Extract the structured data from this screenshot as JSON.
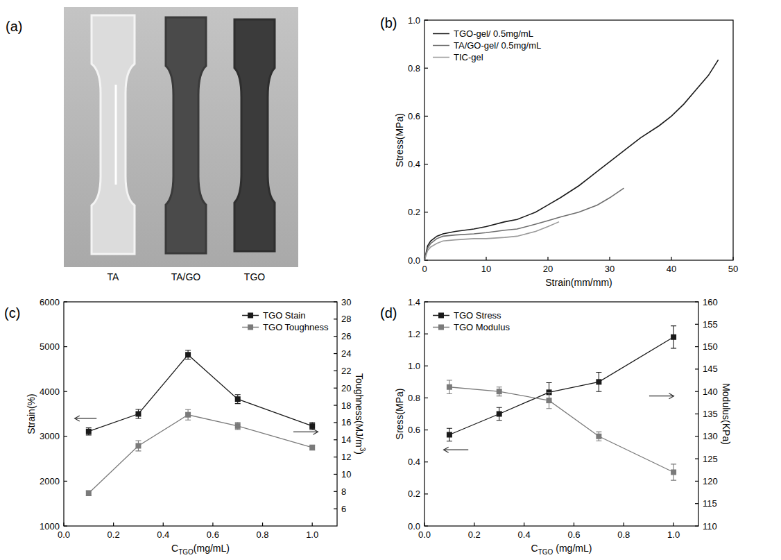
{
  "photo": {
    "panel": "(a)",
    "labels": [
      "TA",
      "TA/GO",
      "TGO"
    ]
  },
  "chart_data": [
    {
      "panel": "(b)",
      "type": "line",
      "marker": "none",
      "line_style": "solid",
      "grid": false,
      "legend": "upper left",
      "xlabel": "Strain(mm/mm)",
      "ylabel": "Stress(MPa)",
      "xlim": [
        0,
        50
      ],
      "xticks": [
        0,
        10,
        20,
        30,
        40,
        50
      ],
      "ylim": [
        0,
        1
      ],
      "yticks": [
        {
          "value": 0,
          "label": "0.0"
        },
        0.2,
        0.4,
        0.6,
        0.8,
        {
          "value": 1,
          "label": "1.0"
        }
      ],
      "series": [
        {
          "name": "TGO-gel/ 0.5mg/mL",
          "color": "#1a1a1a",
          "x": [
            0,
            0.5,
            1,
            2,
            3,
            5,
            8,
            10,
            13,
            15,
            18,
            20,
            22,
            25,
            28,
            30,
            33,
            35,
            38,
            40,
            42,
            44,
            46,
            47.6
          ],
          "values": [
            0,
            0.06,
            0.08,
            0.1,
            0.11,
            0.12,
            0.13,
            0.14,
            0.16,
            0.17,
            0.2,
            0.23,
            0.26,
            0.31,
            0.37,
            0.41,
            0.47,
            0.51,
            0.56,
            0.6,
            0.65,
            0.71,
            0.77,
            0.835
          ]
        },
        {
          "name": "TA/GO-gel/ 0.5mg/mL",
          "color": "#6e6e6e",
          "x": [
            0,
            0.5,
            1,
            2,
            3,
            5,
            8,
            10,
            13,
            15,
            18,
            20,
            22,
            25,
            28,
            30,
            32.3
          ],
          "values": [
            0,
            0.05,
            0.07,
            0.09,
            0.1,
            0.105,
            0.11,
            0.115,
            0.125,
            0.13,
            0.15,
            0.165,
            0.18,
            0.2,
            0.23,
            0.26,
            0.3
          ]
        },
        {
          "name": "TIC-gel",
          "color": "#9a9a9a",
          "x": [
            0,
            0.5,
            1,
            2,
            3,
            5,
            8,
            10,
            13,
            15,
            18,
            20,
            21.8
          ],
          "values": [
            0,
            0.04,
            0.055,
            0.07,
            0.08,
            0.085,
            0.09,
            0.09,
            0.095,
            0.1,
            0.12,
            0.14,
            0.16
          ]
        }
      ]
    },
    {
      "panel": "(c)",
      "type": "line",
      "marker": "square",
      "line_style": "solid",
      "grid": false,
      "legend": "upper right",
      "xlabel": [
        "C",
        "TGO",
        "(mg/mL)"
      ],
      "ylabel": "Strain(%)",
      "y2label": [
        "Toughness(MJ/m",
        "3",
        ")"
      ],
      "x": [
        0.1,
        0.3,
        0.5,
        0.7,
        1.0
      ],
      "xlim": [
        0,
        1.1
      ],
      "xticks": [
        {
          "value": 0,
          "label": "0.0"
        },
        0.2,
        0.4,
        0.6,
        0.8,
        {
          "value": 1,
          "label": "1.0"
        }
      ],
      "ylim": [
        1000,
        6000
      ],
      "yticks": [
        1000,
        2000,
        3000,
        4000,
        5000,
        6000
      ],
      "y2lim": [
        4,
        30
      ],
      "y2ticks": [
        6,
        8,
        10,
        12,
        14,
        16,
        18,
        20,
        22,
        24,
        26,
        28,
        30
      ],
      "series": [
        {
          "name": "TGO Stain",
          "color": "#1a1a1a",
          "values": [
            3110,
            3500,
            4820,
            3830,
            3230
          ],
          "errors": [
            80,
            100,
            100,
            100,
            80
          ]
        },
        {
          "name": "TGO Toughness",
          "color": "#7a7a7a",
          "axis": "y2",
          "values": [
            7.8,
            13.3,
            16.9,
            15.6,
            13.1
          ],
          "errors": [
            0.3,
            0.6,
            0.6,
            0.4,
            0.3
          ]
        }
      ]
    },
    {
      "panel": "(d)",
      "type": "line",
      "marker": "square",
      "line_style": "solid",
      "grid": false,
      "legend": "upper left",
      "xlabel": [
        "C",
        "TGO",
        " (mg/mL)"
      ],
      "ylabel": "Sress(MPa)",
      "y2label": "Modulus(KPa)",
      "x": [
        0.1,
        0.3,
        0.5,
        0.7,
        1.0
      ],
      "xlim": [
        0,
        1.1
      ],
      "xticks": [
        {
          "value": 0,
          "label": "0.0"
        },
        0.2,
        0.4,
        0.6,
        0.8,
        {
          "value": 1,
          "label": "1.0"
        }
      ],
      "ylim": [
        0,
        1.4
      ],
      "yticks": [
        {
          "value": 0,
          "label": "0.0"
        },
        0.2,
        0.4,
        0.6,
        0.8,
        {
          "value": 1,
          "label": "1.0"
        },
        1.2,
        1.4
      ],
      "y2lim": [
        110,
        160
      ],
      "y2ticks": [
        110,
        115,
        120,
        125,
        130,
        135,
        140,
        145,
        150,
        155,
        160
      ],
      "series": [
        {
          "name": "TGO Stress",
          "color": "#1a1a1a",
          "values": [
            0.57,
            0.7,
            0.835,
            0.9,
            1.18
          ],
          "errors": [
            0.04,
            0.04,
            0.06,
            0.06,
            0.07
          ]
        },
        {
          "name": "TGO Modulus",
          "color": "#7a7a7a",
          "axis": "y2",
          "values": [
            141,
            140,
            138,
            130,
            122
          ],
          "errors": [
            1.5,
            1,
            1.8,
            1,
            1.8
          ]
        }
      ]
    }
  ]
}
